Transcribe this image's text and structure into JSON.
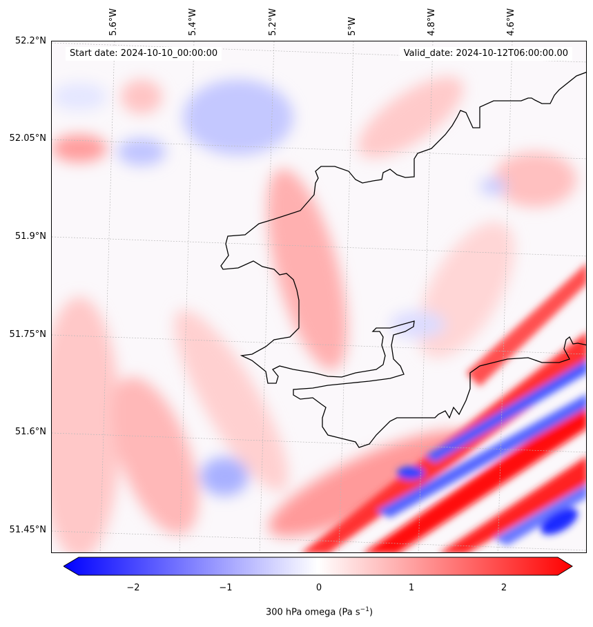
{
  "map": {
    "field": "300 hPa omega",
    "units_html": "Pa s",
    "units_exp": "−1",
    "start_date": "Start date: 2024-10-10_00:00:00",
    "valid_date": "Valid_date: 2024-10-12T06:00:00.00",
    "lat_labels": [
      "52.2°N",
      "52.05°N",
      "51.9°N",
      "51.75°N",
      "51.6°N",
      "51.45°N"
    ],
    "lon_labels": [
      "5.6°W",
      "5.4°W",
      "5.2°W",
      "5°W",
      "4.8°W",
      "4.6°W"
    ],
    "gridlines": true,
    "colormap": "bwr",
    "colors": {
      "negative": "#0000ff",
      "zero": "#ffffff",
      "positive": "#ff0000",
      "coastline": "#000000"
    }
  },
  "colorbar": {
    "ticks": [
      "−2",
      "−1",
      "0",
      "1",
      "2"
    ],
    "tick_values": [
      -2,
      -1,
      0,
      1,
      2
    ],
    "range": [
      -2.5,
      2.5
    ],
    "extend": "both",
    "label": "300 hPa omega (Pa s",
    "label_suffix": ")"
  }
}
